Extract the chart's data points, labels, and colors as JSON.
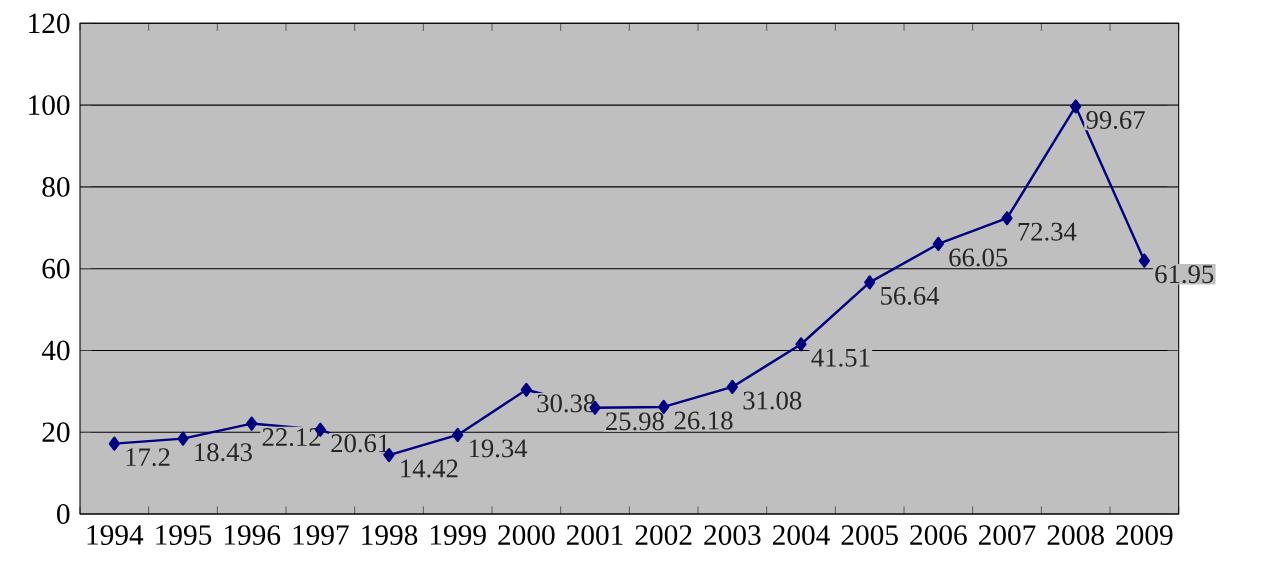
{
  "chart_data": {
    "type": "line",
    "categories": [
      "1994",
      "1995",
      "1996",
      "1997",
      "1998",
      "1999",
      "2000",
      "2001",
      "2002",
      "2003",
      "2004",
      "2005",
      "2006",
      "2007",
      "2008",
      "2009"
    ],
    "values": [
      17.2,
      18.43,
      22.12,
      20.61,
      14.42,
      19.34,
      30.38,
      25.98,
      26.18,
      31.08,
      41.51,
      56.64,
      66.05,
      72.34,
      99.67,
      61.95
    ],
    "color": "#000080",
    "ylim": [
      0,
      120
    ],
    "yticks": [
      0,
      20,
      40,
      60,
      80,
      100,
      120
    ],
    "grid": "y",
    "marker": "diamond",
    "line_style": "solid",
    "data_labels": true
  }
}
